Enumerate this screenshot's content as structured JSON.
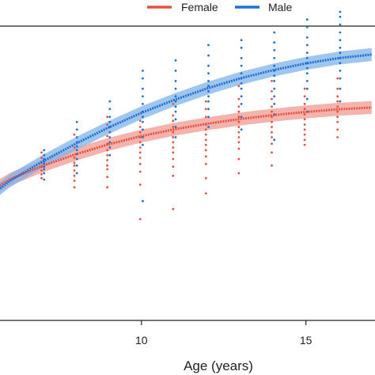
{
  "chart_data": {
    "type": "scatter",
    "title": "",
    "xlabel": "Age (years)",
    "ylabel": "",
    "xlim": [
      5.7,
      17.1
    ],
    "ylim": [
      0,
      100
    ],
    "x_ticks": [
      10,
      15
    ],
    "x_tick_labels": [
      "10",
      "15"
    ],
    "grid": false,
    "legend_position": "top",
    "series": [
      {
        "name": "Female",
        "color": "#e8503f",
        "band_color": "#f19a93",
        "curve": [
          [
            5.7,
            41.0
          ],
          [
            6.0,
            43.1
          ],
          [
            7.0,
            47.7
          ],
          [
            8.0,
            51.6
          ],
          [
            9.0,
            55.0
          ],
          [
            10.0,
            57.8
          ],
          [
            11.0,
            60.1
          ],
          [
            12.0,
            62.0
          ],
          [
            13.0,
            63.6
          ],
          [
            14.0,
            64.9
          ],
          [
            15.0,
            66.0
          ],
          [
            16.0,
            66.9
          ],
          [
            17.0,
            67.5
          ]
        ],
        "band_halfwidth": 2.2,
        "points": [
          [
            7,
            52.2
          ],
          [
            7,
            50.4
          ],
          [
            7,
            48.7
          ],
          [
            7,
            47.4
          ],
          [
            7,
            46.1
          ],
          [
            7,
            44.8
          ],
          [
            7,
            43.5
          ],
          [
            8,
            58.3
          ],
          [
            8,
            53.9
          ],
          [
            8,
            50.4
          ],
          [
            8,
            48.7
          ],
          [
            8,
            47.8
          ],
          [
            8,
            46.1
          ],
          [
            8,
            44.3
          ],
          [
            8,
            42.6
          ],
          [
            8,
            40.4
          ],
          [
            9,
            64.3
          ],
          [
            9,
            61.7
          ],
          [
            9,
            57.8
          ],
          [
            9,
            55.2
          ],
          [
            9,
            53.0
          ],
          [
            9,
            51.3
          ],
          [
            9,
            49.6
          ],
          [
            9,
            47.8
          ],
          [
            9,
            46.5
          ],
          [
            9,
            43.9
          ],
          [
            9,
            40.4
          ],
          [
            10,
            63.0
          ],
          [
            10,
            60.9
          ],
          [
            10,
            59.1
          ],
          [
            10,
            57.4
          ],
          [
            10,
            55.7
          ],
          [
            10,
            53.9
          ],
          [
            10,
            52.2
          ],
          [
            10,
            50.4
          ],
          [
            10,
            48.3
          ],
          [
            10,
            45.7
          ],
          [
            10,
            41.3
          ],
          [
            10,
            29.6
          ],
          [
            11,
            68.7
          ],
          [
            11,
            64.8
          ],
          [
            11,
            63.0
          ],
          [
            11,
            60.9
          ],
          [
            11,
            59.1
          ],
          [
            11,
            57.4
          ],
          [
            11,
            55.7
          ],
          [
            11,
            53.9
          ],
          [
            11,
            52.2
          ],
          [
            11,
            50.0
          ],
          [
            11,
            47.4
          ],
          [
            11,
            44.3
          ],
          [
            11,
            33.0
          ],
          [
            12,
            69.6
          ],
          [
            12,
            67.0
          ],
          [
            12,
            64.3
          ],
          [
            12,
            61.7
          ],
          [
            12,
            60.0
          ],
          [
            12,
            58.3
          ],
          [
            12,
            56.5
          ],
          [
            12,
            54.8
          ],
          [
            12,
            53.0
          ],
          [
            12,
            50.9
          ],
          [
            12,
            48.3
          ],
          [
            12,
            43.5
          ],
          [
            12,
            38.3
          ],
          [
            13,
            74.8
          ],
          [
            13,
            70.4
          ],
          [
            13,
            67.8
          ],
          [
            13,
            66.1
          ],
          [
            13,
            64.3
          ],
          [
            13,
            62.6
          ],
          [
            13,
            60.9
          ],
          [
            13,
            59.1
          ],
          [
            13,
            57.4
          ],
          [
            13,
            55.7
          ],
          [
            13,
            53.5
          ],
          [
            13,
            50.0
          ],
          [
            13,
            45.2
          ],
          [
            14,
            76.5
          ],
          [
            14,
            73.0
          ],
          [
            14,
            70.4
          ],
          [
            14,
            67.8
          ],
          [
            14,
            66.1
          ],
          [
            14,
            64.3
          ],
          [
            14,
            62.6
          ],
          [
            14,
            60.9
          ],
          [
            14,
            59.1
          ],
          [
            14,
            57.4
          ],
          [
            14,
            55.2
          ],
          [
            14,
            52.2
          ],
          [
            14,
            47.8
          ],
          [
            15,
            73.9
          ],
          [
            15,
            71.3
          ],
          [
            15,
            68.7
          ],
          [
            15,
            67.0
          ],
          [
            15,
            65.2
          ],
          [
            15,
            63.5
          ],
          [
            15,
            61.7
          ],
          [
            15,
            60.0
          ],
          [
            15,
            58.3
          ],
          [
            15,
            56.5
          ],
          [
            15,
            54.8
          ],
          [
            16,
            77.4
          ],
          [
            16,
            73.9
          ],
          [
            16,
            71.3
          ],
          [
            16,
            69.6
          ],
          [
            16,
            67.8
          ],
          [
            16,
            66.1
          ],
          [
            16,
            64.3
          ],
          [
            16,
            62.6
          ],
          [
            16,
            60.0
          ],
          [
            16,
            57.4
          ]
        ]
      },
      {
        "name": "Male",
        "color": "#1f6fd4",
        "band_color": "#7fb3ea",
        "curve": [
          [
            5.7,
            40.0
          ],
          [
            6.0,
            42.6
          ],
          [
            7.0,
            49.2
          ],
          [
            8.0,
            55.2
          ],
          [
            9.0,
            60.7
          ],
          [
            10.0,
            65.7
          ],
          [
            11.0,
            70.1
          ],
          [
            12.0,
            74.0
          ],
          [
            13.0,
            77.4
          ],
          [
            14.0,
            80.2
          ],
          [
            15.0,
            82.5
          ],
          [
            16.0,
            84.3
          ],
          [
            17.0,
            85.5
          ]
        ],
        "band_halfwidth": 2.2,
        "points": [
          [
            7,
            53.0
          ],
          [
            7,
            51.3
          ],
          [
            7,
            50.0
          ],
          [
            7,
            49.1
          ],
          [
            7,
            48.3
          ],
          [
            7,
            47.4
          ],
          [
            7,
            46.5
          ],
          [
            7,
            45.2
          ],
          [
            7,
            43.0
          ],
          [
            8,
            62.6
          ],
          [
            8,
            60.0
          ],
          [
            8,
            57.4
          ],
          [
            8,
            55.7
          ],
          [
            8,
            54.3
          ],
          [
            8,
            53.0
          ],
          [
            8,
            51.7
          ],
          [
            8,
            50.0
          ],
          [
            8,
            47.8
          ],
          [
            8,
            45.2
          ],
          [
            9,
            69.6
          ],
          [
            9,
            67.0
          ],
          [
            9,
            64.3
          ],
          [
            9,
            62.6
          ],
          [
            9,
            60.9
          ],
          [
            9,
            59.1
          ],
          [
            9,
            57.4
          ],
          [
            9,
            55.7
          ],
          [
            9,
            53.9
          ],
          [
            9,
            51.3
          ],
          [
            10,
            80.0
          ],
          [
            10,
            77.4
          ],
          [
            10,
            73.9
          ],
          [
            10,
            71.3
          ],
          [
            10,
            68.7
          ],
          [
            10,
            66.1
          ],
          [
            10,
            64.3
          ],
          [
            10,
            62.6
          ],
          [
            10,
            60.0
          ],
          [
            10,
            57.4
          ],
          [
            10,
            54.8
          ],
          [
            10,
            35.7
          ],
          [
            11,
            83.5
          ],
          [
            11,
            80.0
          ],
          [
            11,
            76.5
          ],
          [
            11,
            73.9
          ],
          [
            11,
            71.3
          ],
          [
            11,
            69.6
          ],
          [
            11,
            67.8
          ],
          [
            11,
            66.1
          ],
          [
            11,
            63.5
          ],
          [
            11,
            60.9
          ],
          [
            11,
            57.4
          ],
          [
            12,
            88.7
          ],
          [
            12,
            85.2
          ],
          [
            12,
            81.7
          ],
          [
            12,
            79.1
          ],
          [
            12,
            76.5
          ],
          [
            12,
            74.8
          ],
          [
            12,
            73.0
          ],
          [
            12,
            71.3
          ],
          [
            12,
            69.6
          ],
          [
            12,
            67.0
          ],
          [
            12,
            64.3
          ],
          [
            12,
            60.9
          ],
          [
            13,
            90.4
          ],
          [
            13,
            87.8
          ],
          [
            13,
            84.3
          ],
          [
            13,
            81.7
          ],
          [
            13,
            79.1
          ],
          [
            13,
            77.4
          ],
          [
            13,
            75.7
          ],
          [
            13,
            73.9
          ],
          [
            13,
            71.3
          ],
          [
            13,
            68.7
          ],
          [
            13,
            64.3
          ],
          [
            13,
            60.0
          ],
          [
            14,
            93.0
          ],
          [
            14,
            89.6
          ],
          [
            14,
            87.0
          ],
          [
            14,
            84.3
          ],
          [
            14,
            81.7
          ],
          [
            14,
            80.0
          ],
          [
            14,
            78.3
          ],
          [
            14,
            76.5
          ],
          [
            14,
            73.9
          ],
          [
            14,
            71.3
          ],
          [
            14,
            68.7
          ],
          [
            14,
            65.2
          ],
          [
            14,
            56.5
          ],
          [
            15,
            97.4
          ],
          [
            15,
            94.8
          ],
          [
            15,
            91.3
          ],
          [
            15,
            88.7
          ],
          [
            15,
            86.1
          ],
          [
            15,
            84.3
          ],
          [
            15,
            82.6
          ],
          [
            15,
            80.9
          ],
          [
            15,
            79.1
          ],
          [
            15,
            76.5
          ],
          [
            15,
            73.9
          ],
          [
            15,
            70.4
          ],
          [
            15,
            66.1
          ],
          [
            16,
            100.0
          ],
          [
            16,
            98.3
          ],
          [
            16,
            95.7
          ],
          [
            16,
            93.0
          ],
          [
            16,
            90.4
          ],
          [
            16,
            87.8
          ],
          [
            16,
            86.1
          ],
          [
            16,
            84.3
          ],
          [
            16,
            82.6
          ],
          [
            16,
            80.0
          ],
          [
            16,
            77.4
          ],
          [
            16,
            73.9
          ],
          [
            16,
            69.6
          ]
        ]
      }
    ]
  }
}
